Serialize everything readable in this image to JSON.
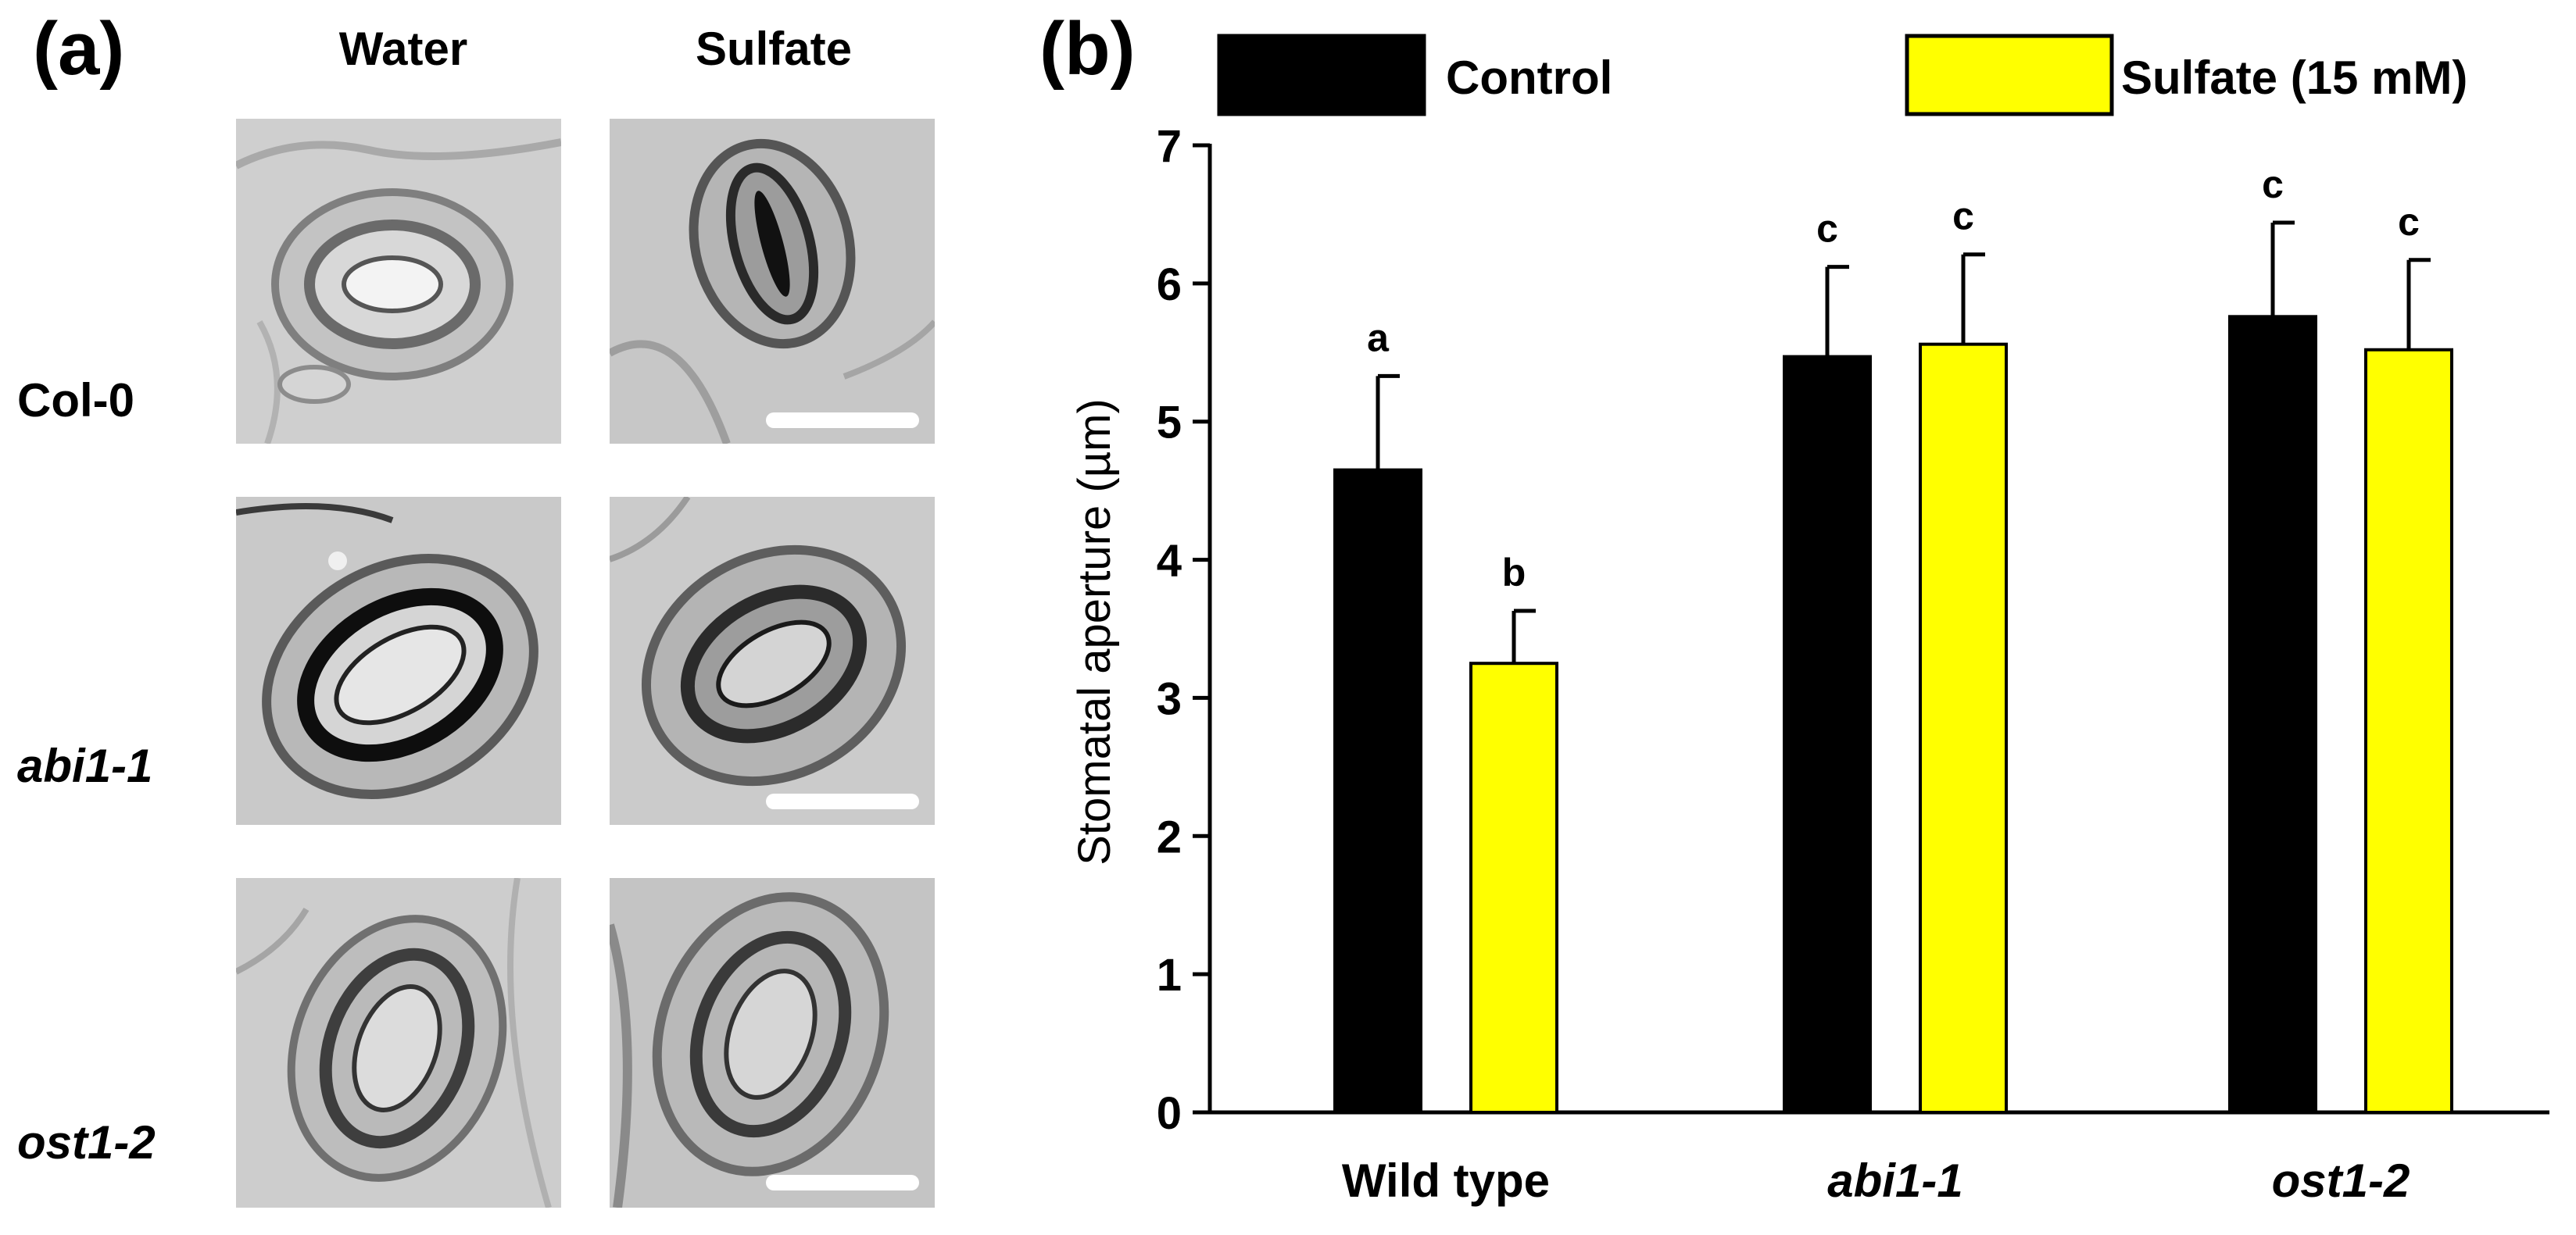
{
  "panel_a": {
    "letter": "(a)",
    "columns": [
      "Water",
      "Sulfate"
    ],
    "rows": [
      {
        "label": "Col-0",
        "italic": false
      },
      {
        "label": "abi1-1",
        "italic": true
      },
      {
        "label": "ost1-2",
        "italic": true
      }
    ]
  },
  "panel_b": {
    "letter": "(b)"
  },
  "colors": {
    "control": "#000000",
    "sulfate": "#ffff00",
    "micro_bg": "#cfcfcf"
  },
  "chart_data": {
    "type": "bar",
    "title": "",
    "xlabel": "",
    "ylabel": "Stomatal aperture (µm)",
    "ylim": [
      0,
      7
    ],
    "yticks": [
      "0",
      "1",
      "2",
      "3",
      "4",
      "5",
      "6",
      "7"
    ],
    "categories": [
      "Wild type",
      "abi1-1",
      "ost1-2"
    ],
    "categories_italic": [
      false,
      true,
      true
    ],
    "legend_position": "top",
    "series": [
      {
        "name": "Control",
        "values": [
          4.65,
          5.47,
          5.76
        ],
        "errors": [
          0.68,
          0.65,
          0.68
        ],
        "letters": [
          "a",
          "c",
          "c"
        ]
      },
      {
        "name": "Sulfate (15 mM)",
        "values": [
          3.25,
          5.56,
          5.52
        ],
        "errors": [
          0.38,
          0.65,
          0.65
        ],
        "letters": [
          "b",
          "c",
          "c"
        ]
      }
    ]
  }
}
